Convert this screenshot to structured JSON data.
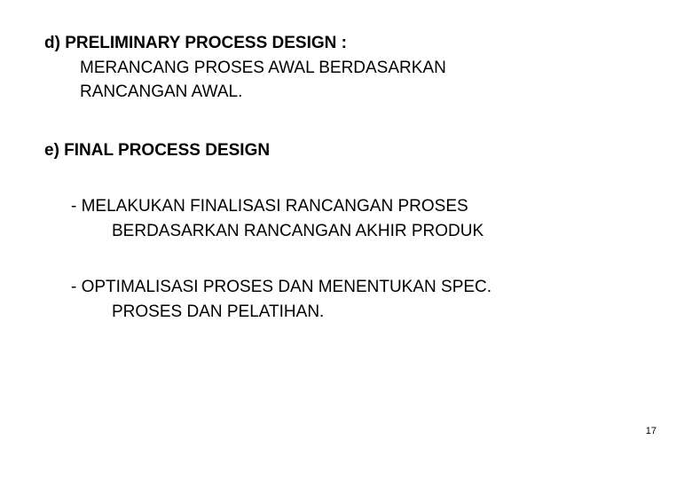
{
  "section_d": {
    "heading": "d) PRELIMINARY PROCESS DESIGN :",
    "body_line1": "MERANCANG PROSES AWAL BERDASARKAN",
    "body_line2": "RANCANGAN AWAL."
  },
  "section_e": {
    "heading": "e) FINAL PROCESS DESIGN",
    "bullet1_line1": "- MELAKUKAN FINALISASI RANCANGAN PROSES",
    "bullet1_line2": "BERDASARKAN RANCANGAN AKHIR PRODUK",
    "bullet2_line1": "- OPTIMALISASI PROSES DAN MENENTUKAN SPEC.",
    "bullet2_line2": "PROSES DAN PELATIHAN."
  },
  "page_number": "17",
  "colors": {
    "background": "#ffffff",
    "text": "#000000"
  },
  "typography": {
    "body_fontsize": 19,
    "page_number_fontsize": 11,
    "font_family": "Arial"
  }
}
